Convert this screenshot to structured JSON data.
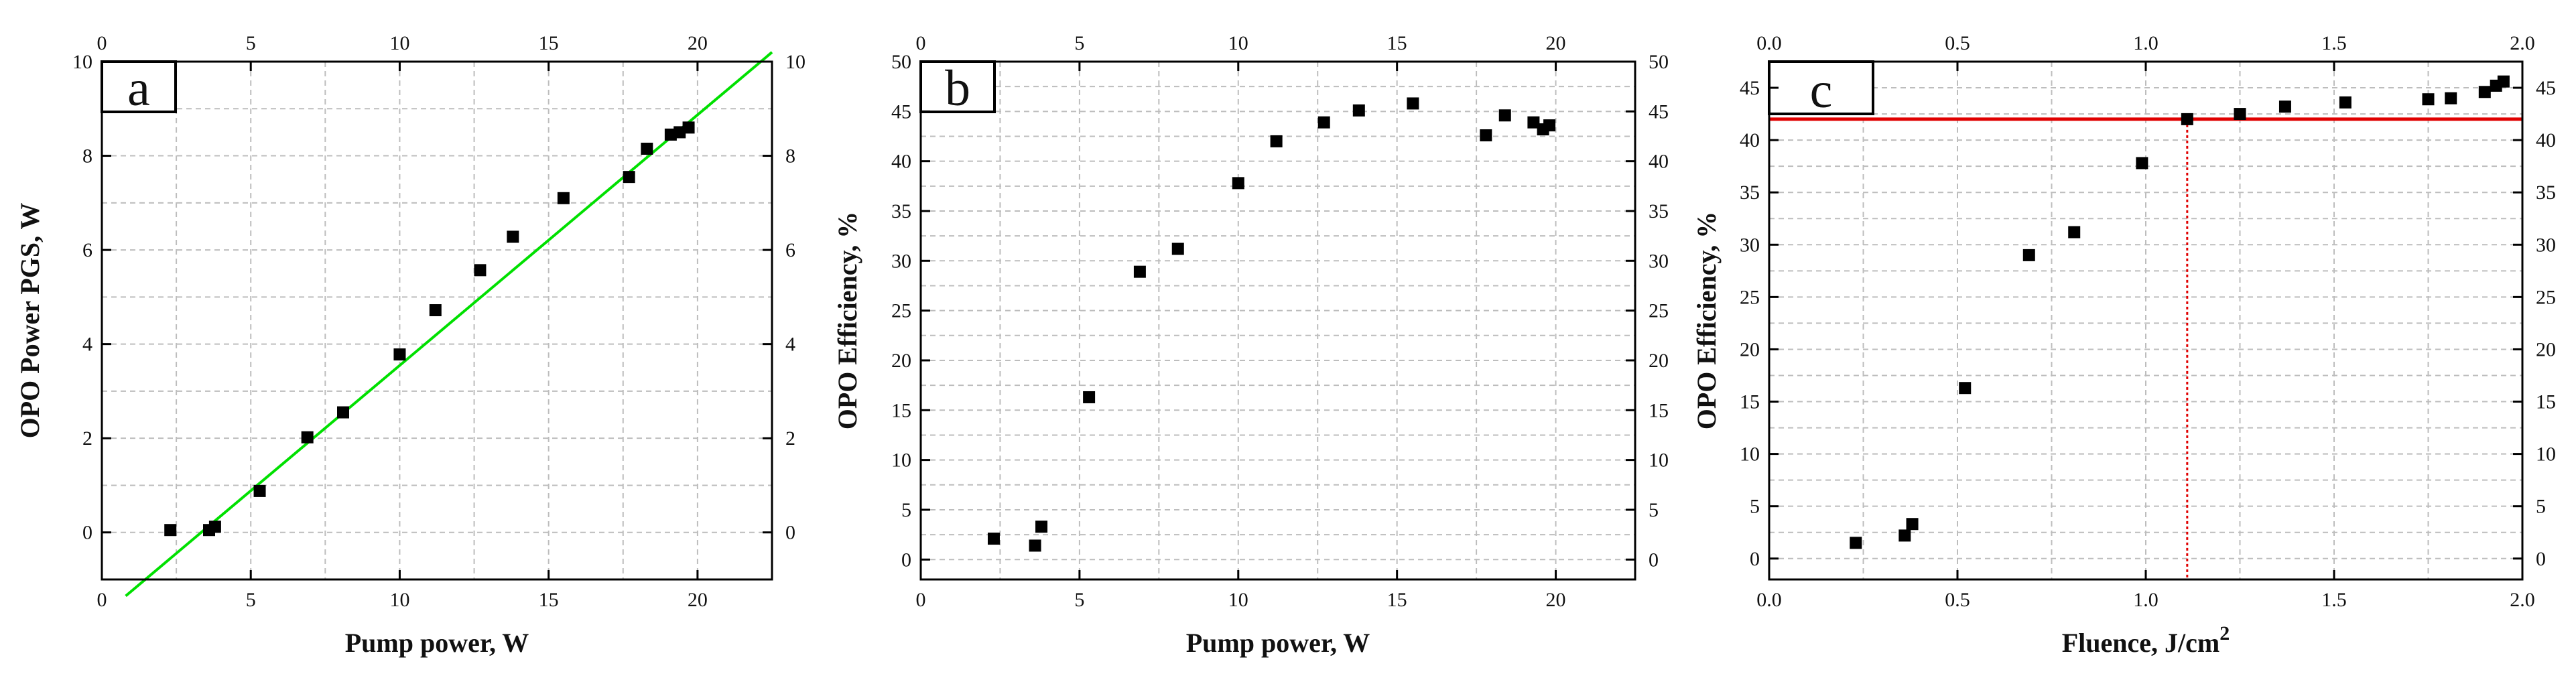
{
  "chart_data": [
    {
      "id": "a",
      "type": "scatter",
      "panel_label": "a",
      "title": "",
      "xlabel": "Pump power, W",
      "ylabel": "OPO Power PGS, W",
      "xlim": [
        0,
        22.5
      ],
      "ylim": [
        -1,
        10
      ],
      "xticks": [
        0,
        5,
        10,
        15,
        20
      ],
      "yticks": [
        0,
        2,
        4,
        6,
        8,
        10
      ],
      "top_xticks": [
        0,
        5,
        10,
        15,
        20
      ],
      "right_yticks": [
        0,
        2,
        4,
        6,
        8,
        10
      ],
      "grid": true,
      "points": [
        {
          "x": 2.3,
          "y": 0.05
        },
        {
          "x": 3.6,
          "y": 0.05
        },
        {
          "x": 3.8,
          "y": 0.12
        },
        {
          "x": 5.3,
          "y": 0.88
        },
        {
          "x": 6.9,
          "y": 2.02
        },
        {
          "x": 8.1,
          "y": 2.55
        },
        {
          "x": 10.0,
          "y": 3.78
        },
        {
          "x": 11.2,
          "y": 4.72
        },
        {
          "x": 12.7,
          "y": 5.57
        },
        {
          "x": 13.8,
          "y": 6.28
        },
        {
          "x": 15.5,
          "y": 7.1
        },
        {
          "x": 17.7,
          "y": 7.55
        },
        {
          "x": 18.3,
          "y": 8.15
        },
        {
          "x": 19.1,
          "y": 8.45
        },
        {
          "x": 19.4,
          "y": 8.5
        },
        {
          "x": 19.7,
          "y": 8.6
        }
      ],
      "fit_line": {
        "x": [
          0.8,
          22.5
        ],
        "y": [
          -1.35,
          10.2
        ],
        "color": "#00e000"
      }
    },
    {
      "id": "b",
      "type": "scatter",
      "panel_label": "b",
      "title": "",
      "xlabel": "Pump power, W",
      "ylabel": "OPO Efficiency, %",
      "xlim": [
        0,
        22.5
      ],
      "ylim": [
        -2,
        50
      ],
      "xticks": [
        0,
        5,
        10,
        15,
        20
      ],
      "yticks": [
        0,
        5,
        10,
        15,
        20,
        25,
        30,
        35,
        40,
        45,
        50
      ],
      "top_xticks": [
        0,
        5,
        10,
        15,
        20
      ],
      "right_yticks": [
        0,
        5,
        10,
        15,
        20,
        25,
        30,
        35,
        40,
        45,
        50
      ],
      "grid": true,
      "points": [
        {
          "x": 2.3,
          "y": 2.1
        },
        {
          "x": 3.6,
          "y": 1.4
        },
        {
          "x": 3.8,
          "y": 3.3
        },
        {
          "x": 5.3,
          "y": 16.3
        },
        {
          "x": 6.9,
          "y": 28.9
        },
        {
          "x": 8.1,
          "y": 31.2
        },
        {
          "x": 10.0,
          "y": 37.8
        },
        {
          "x": 11.2,
          "y": 42.0
        },
        {
          "x": 12.7,
          "y": 43.9
        },
        {
          "x": 13.8,
          "y": 45.1
        },
        {
          "x": 15.5,
          "y": 45.8
        },
        {
          "x": 17.8,
          "y": 42.6
        },
        {
          "x": 18.4,
          "y": 44.6
        },
        {
          "x": 19.3,
          "y": 43.9
        },
        {
          "x": 19.6,
          "y": 43.2
        },
        {
          "x": 19.8,
          "y": 43.6
        }
      ]
    },
    {
      "id": "c",
      "type": "scatter",
      "panel_label": "c",
      "title": "",
      "xlabel": "Fluence, J/cm",
      "xlabel_sup": "2",
      "ylabel": "OPO Efficiency, %",
      "xlim": [
        0,
        2.0
      ],
      "ylim": [
        -2,
        47.5
      ],
      "xticks": [
        0.0,
        0.5,
        1.0,
        1.5,
        2.0
      ],
      "yticks": [
        0,
        5,
        10,
        15,
        20,
        25,
        30,
        35,
        40,
        45
      ],
      "top_xticks": [
        0.0,
        0.5,
        1.0,
        1.5,
        2.0
      ],
      "right_yticks": [
        0,
        5,
        10,
        15,
        20,
        25,
        30,
        35,
        40,
        45
      ],
      "grid": true,
      "points": [
        {
          "x": 0.23,
          "y": 1.5
        },
        {
          "x": 0.36,
          "y": 2.2
        },
        {
          "x": 0.38,
          "y": 3.3
        },
        {
          "x": 0.52,
          "y": 16.3
        },
        {
          "x": 0.69,
          "y": 29.0
        },
        {
          "x": 0.81,
          "y": 31.2
        },
        {
          "x": 0.99,
          "y": 37.8
        },
        {
          "x": 1.11,
          "y": 42.0
        },
        {
          "x": 1.25,
          "y": 42.5
        },
        {
          "x": 1.37,
          "y": 43.2
        },
        {
          "x": 1.53,
          "y": 43.6
        },
        {
          "x": 1.75,
          "y": 43.9
        },
        {
          "x": 1.81,
          "y": 44.0
        },
        {
          "x": 1.9,
          "y": 44.6
        },
        {
          "x": 1.93,
          "y": 45.2
        },
        {
          "x": 1.95,
          "y": 45.6
        }
      ],
      "hline": {
        "y": 42.0,
        "color": "#e00000"
      },
      "vline": {
        "x": 1.11,
        "color": "#e00000"
      }
    }
  ],
  "colors": {
    "marker": "#000000",
    "grid": "#bdbdbd",
    "fit_line": "#00e000",
    "threshold": "#e00000"
  }
}
